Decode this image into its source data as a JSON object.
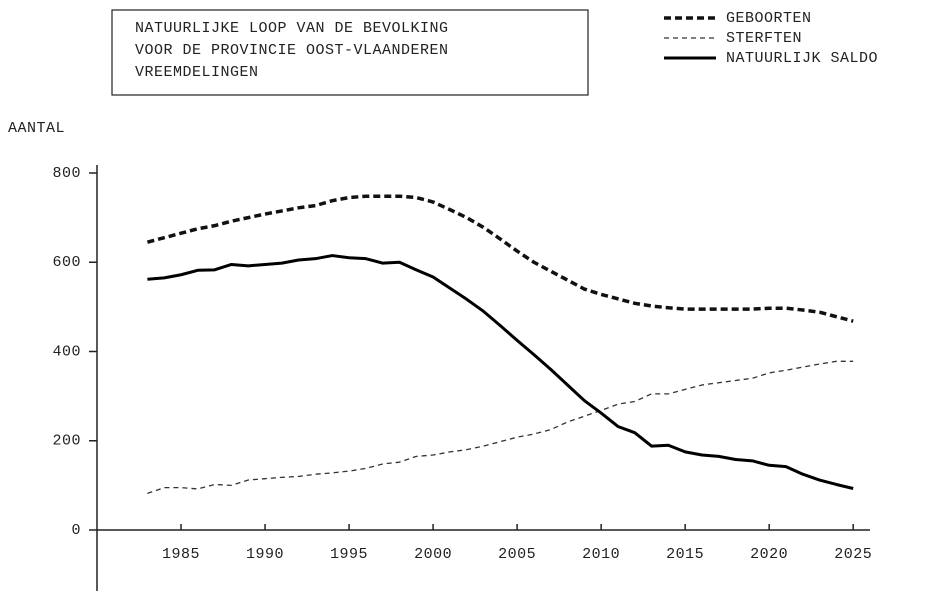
{
  "chart_data": {
    "type": "line",
    "title": [
      "NATUURLIJKE LOOP VAN DE BEVOLKING",
      "VOOR DE PROVINCIE OOST-VLAANDEREN",
      "VREEMDELINGEN"
    ],
    "y_label": "AANTAL",
    "x": [
      1983,
      1984,
      1985,
      1986,
      1987,
      1988,
      1989,
      1990,
      1991,
      1992,
      1993,
      1994,
      1995,
      1996,
      1997,
      1998,
      1999,
      2000,
      2001,
      2002,
      2003,
      2004,
      2005,
      2006,
      2007,
      2008,
      2009,
      2010,
      2011,
      2012,
      2013,
      2014,
      2015,
      2016,
      2017,
      2018,
      2019,
      2020,
      2021,
      2022,
      2023,
      2024,
      2025
    ],
    "series": [
      {
        "name": "GEBOORTEN",
        "color": "#111",
        "linestyle": "dashed-thick",
        "values": [
          645,
          655,
          665,
          675,
          682,
          692,
          700,
          708,
          715,
          722,
          727,
          738,
          745,
          748,
          748,
          748,
          745,
          735,
          718,
          700,
          678,
          652,
          625,
          600,
          580,
          560,
          540,
          528,
          518,
          508,
          502,
          498,
          495,
          495,
          495,
          495,
          495,
          497,
          497,
          493,
          488,
          478,
          468
        ]
      },
      {
        "name": "STERFTEN",
        "color": "#333",
        "linestyle": "dashed-thin",
        "values": [
          82,
          95,
          95,
          92,
          102,
          100,
          112,
          115,
          118,
          120,
          125,
          128,
          132,
          138,
          148,
          152,
          165,
          168,
          175,
          180,
          188,
          198,
          208,
          215,
          225,
          242,
          255,
          268,
          282,
          288,
          305,
          305,
          315,
          325,
          330,
          335,
          340,
          352,
          358,
          365,
          372,
          378,
          378
        ]
      },
      {
        "name": "NATUURLIJK SALDO",
        "color": "#000",
        "linestyle": "solid",
        "values": [
          562,
          565,
          572,
          582,
          583,
          595,
          592,
          595,
          598,
          605,
          608,
          615,
          610,
          608,
          598,
          600,
          583,
          567,
          542,
          517,
          490,
          458,
          425,
          393,
          360,
          325,
          290,
          262,
          232,
          218,
          188,
          190,
          175,
          168,
          165,
          158,
          155,
          145,
          142,
          125,
          112,
          102,
          93
        ]
      }
    ],
    "xlim": [
      1980,
      2026
    ],
    "xticks": [
      1985,
      1990,
      1995,
      2000,
      2005,
      2010,
      2015,
      2020,
      2025
    ],
    "ylim": [
      0,
      800
    ],
    "yticks": [
      0,
      200,
      400,
      600,
      800
    ]
  }
}
